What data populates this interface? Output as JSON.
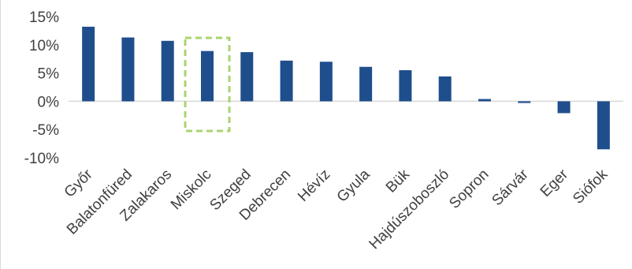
{
  "chart_data": {
    "type": "bar",
    "title": "",
    "xlabel": "",
    "ylabel": "",
    "categories": [
      "Győr",
      "Balatonfüred",
      "Zalakaros",
      "Miskolc",
      "Szeged",
      "Debrecen",
      "Hévíz",
      "Gyula",
      "Bük",
      "Hajdúszoboszló",
      "Sopron",
      "Sárvár",
      "Eger",
      "Siófok"
    ],
    "series": [
      {
        "values": [
          13.2,
          11.3,
          10.7,
          8.9,
          8.7,
          7.2,
          7.0,
          6.1,
          5.5,
          4.4,
          0.4,
          -0.3,
          -2.1,
          -8.5
        ]
      }
    ],
    "ylim": [
      -10,
      15
    ],
    "yticks": [
      -10,
      -5,
      0,
      5,
      10,
      15
    ],
    "ytick_labels": [
      "-10%",
      "-5%",
      "0%",
      "5%",
      "10%",
      "15%"
    ],
    "grid": false,
    "legend": "none",
    "bar_color": "#1f4e8c",
    "highlight": {
      "category": "Miskolc",
      "style": "dashed-box",
      "color": "#a9d46f"
    }
  }
}
